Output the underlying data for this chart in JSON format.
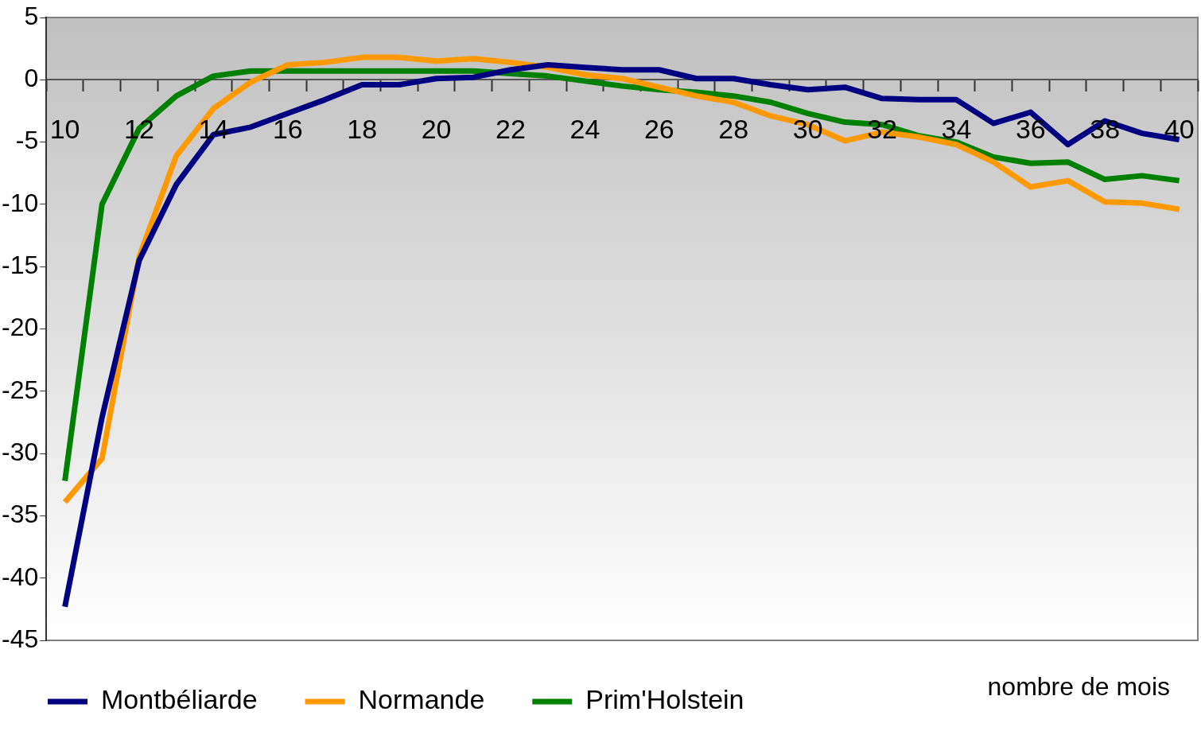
{
  "chart_data": {
    "type": "line",
    "xlabel": "nombre de mois",
    "categories": [
      "10",
      null,
      "12",
      null,
      "14",
      null,
      "16",
      null,
      "18",
      null,
      "20",
      null,
      "22",
      null,
      "24",
      null,
      "26",
      null,
      "28",
      null,
      "30",
      null,
      "32",
      null,
      "34",
      null,
      "36",
      null,
      "38",
      null,
      "40"
    ],
    "series": [
      {
        "name": "Montbéliarde",
        "color": "#000080",
        "values": [
          -42.3,
          -27.1,
          -14.5,
          -8.4,
          -4.4,
          -3.8,
          -2.7,
          -1.6,
          -0.4,
          -0.4,
          0.1,
          0.2,
          0.8,
          1.2,
          1.0,
          0.8,
          0.8,
          0.1,
          0.1,
          -0.4,
          -0.8,
          -0.6,
          -1.5,
          -1.6,
          -1.6,
          -3.5,
          -2.6,
          -5.2,
          -3.3,
          -4.3,
          -4.8
        ]
      },
      {
        "name": "Normande",
        "color": "#ff9900",
        "values": [
          -33.9,
          -30.4,
          -14.2,
          -6.1,
          -2.3,
          -0.2,
          1.2,
          1.4,
          1.8,
          1.8,
          1.5,
          1.7,
          1.4,
          1.0,
          0.4,
          0.1,
          -0.6,
          -1.3,
          -1.8,
          -2.9,
          -3.6,
          -4.9,
          -4.2,
          -4.6,
          -5.2,
          -6.6,
          -8.6,
          -8.1,
          -9.8,
          -9.9,
          -10.4
        ]
      },
      {
        "name": "Prim'Holstein",
        "color": "#008000",
        "values": [
          -32.2,
          -10.0,
          -3.9,
          -1.3,
          0.3,
          0.7,
          0.7,
          0.7,
          0.7,
          0.7,
          0.7,
          0.7,
          0.5,
          0.3,
          -0.1,
          -0.5,
          -0.8,
          -1.0,
          -1.3,
          -1.8,
          -2.7,
          -3.4,
          -3.6,
          -4.5,
          -5.0,
          -6.2,
          -6.7,
          -6.6,
          -8.0,
          -7.7,
          -8.1
        ]
      }
    ],
    "ylim": [
      -45,
      5
    ],
    "yticks": [
      -45,
      -40,
      -35,
      -30,
      -25,
      -20,
      -15,
      -10,
      -5,
      0,
      5
    ],
    "grid": false,
    "legend": "bottom",
    "marker": "none",
    "line_style": "solid"
  }
}
